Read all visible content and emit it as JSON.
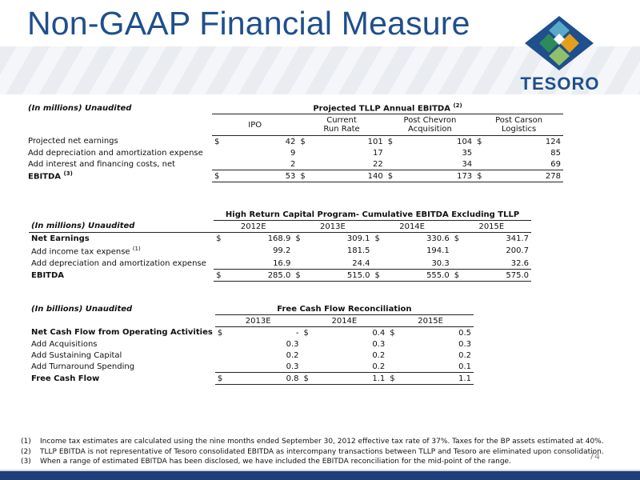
{
  "title": "Non-GAAP Financial Measure",
  "logo": {
    "text": "TESORO",
    "colors": [
      "#1f4f8c",
      "#2e8a5a",
      "#e3a01b",
      "#5aa9c9"
    ]
  },
  "table1": {
    "unit_label": "(In millions) Unaudited",
    "group_header": "Projected TLLP Annual EBITDA",
    "group_header_sup": "(2)",
    "columns": [
      {
        "line1": "IPO",
        "line2": ""
      },
      {
        "line1": "Current",
        "line2": "Run Rate"
      },
      {
        "line1": "Post Chevron",
        "line2": "Acquisition"
      },
      {
        "line1": "Post Carson",
        "line2": "Logistics"
      }
    ],
    "rows": [
      {
        "label": "Projected net earnings",
        "sup": "",
        "values": [
          "42",
          "101",
          "104",
          "124"
        ],
        "dollar": "$"
      },
      {
        "label": "Add depreciation and amortization expense",
        "sup": "",
        "values": [
          "9",
          "17",
          "35",
          "85"
        ],
        "dollar": ""
      },
      {
        "label": "Add interest and financing costs, net",
        "sup": "",
        "values": [
          "2",
          "22",
          "34",
          "69"
        ],
        "dollar": ""
      },
      {
        "label": "EBITDA",
        "sup": "(3)",
        "values": [
          "53",
          "140",
          "173",
          "278"
        ],
        "dollar": "$"
      }
    ]
  },
  "table2": {
    "unit_label": "(In millions) Unaudited",
    "group_header": "High Return Capital Program- Cumulative EBITDA Excluding TLLP",
    "columns": [
      "2012E",
      "2013E",
      "2014E",
      "2015E"
    ],
    "rows": [
      {
        "label": "Net Earnings",
        "sup": "",
        "values": [
          "168.9",
          "309.1",
          "330.6",
          "341.7"
        ],
        "dollar": "$"
      },
      {
        "label": "Add income tax expense",
        "sup": "(1)",
        "values": [
          "99.2",
          "181.5",
          "194.1",
          "200.7"
        ],
        "dollar": ""
      },
      {
        "label": "Add depreciation and amortization expense",
        "sup": "",
        "values": [
          "16.9",
          "24.4",
          "30.3",
          "32.6"
        ],
        "dollar": ""
      },
      {
        "label": "EBITDA",
        "sup": "",
        "values": [
          "285.0",
          "515.0",
          "555.0",
          "575.0"
        ],
        "dollar": "$"
      }
    ]
  },
  "table3": {
    "unit_label": "(In billions) Unaudited",
    "group_header": "Free Cash Flow  Reconciliation",
    "columns": [
      "2013E",
      "2014E",
      "2015E"
    ],
    "rows": [
      {
        "label": "Net Cash Flow from Operating Activities",
        "values": [
          "-",
          "0.4",
          "0.5"
        ],
        "dollar": "$"
      },
      {
        "label": "Add Acquisitions",
        "values": [
          "0.3",
          "0.3",
          "0.3"
        ],
        "dollar": ""
      },
      {
        "label": "Add Sustaining Capital",
        "values": [
          "0.2",
          "0.2",
          "0.2"
        ],
        "dollar": ""
      },
      {
        "label": "Add Turnaround Spending",
        "values": [
          "0.3",
          "0.2",
          "0.1"
        ],
        "dollar": ""
      },
      {
        "label": "Free Cash Flow",
        "values": [
          "0.8",
          "1.1",
          "1.1"
        ],
        "dollar": "$"
      }
    ]
  },
  "footnotes": [
    {
      "num": "(1)",
      "text": "Income tax estimates are calculated using the nine months ended September 30, 2012 effective tax rate of 37%. Taxes for the BP assets estimated at 40%."
    },
    {
      "num": "(2)",
      "text": "TLLP EBITDA is not representative of Tesoro consolidated EBITDA as intercompany transactions between TLLP and Tesoro are eliminated upon consolidation."
    },
    {
      "num": "(3)",
      "text": "When a range of estimated EBITDA has been disclosed, we have included the EBITDA reconciliation for the mid-point of the range."
    }
  ],
  "page_number": "74"
}
